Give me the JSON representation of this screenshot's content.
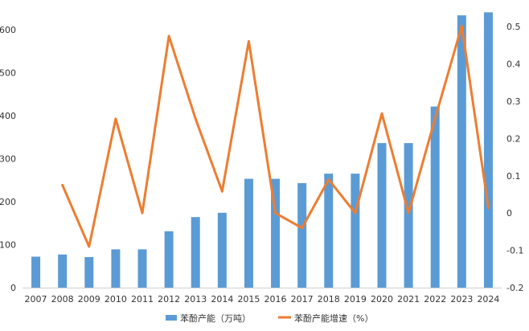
{
  "chart_data": {
    "type": "bar",
    "categories": [
      "2007",
      "2008",
      "2009",
      "2010",
      "2011",
      "2012",
      "2013",
      "2014",
      "2015",
      "2016",
      "2017",
      "2018",
      "2019",
      "2020",
      "2021",
      "2022",
      "2023",
      "2024"
    ],
    "y_left": {
      "ticks": [
        0,
        100,
        200,
        300,
        400,
        500,
        600
      ],
      "range": [
        0,
        650
      ]
    },
    "y_right": {
      "ticks": [
        "-0.2",
        "-0.1",
        "0",
        "0.1",
        "0.2",
        "0.3",
        "0.4",
        "0.5"
      ],
      "range": [
        -0.2,
        0.55
      ]
    },
    "grid": false,
    "legend_position": "bottom",
    "series": [
      {
        "name": "苯酚产能（万吨）",
        "type": "bar",
        "axis": "left",
        "color": "#5B9BD5",
        "values": [
          72,
          77,
          71,
          89,
          89,
          131,
          164,
          174,
          253,
          253,
          243,
          265,
          265,
          336,
          336,
          421,
          633,
          640
        ]
      },
      {
        "name": "苯酚产能增速（%）",
        "type": "line",
        "axis": "right",
        "color": "#ED7D31",
        "values": [
          null,
          0.075,
          -0.09,
          0.253,
          0.0,
          0.475,
          0.253,
          0.058,
          0.461,
          0.0,
          -0.04,
          0.09,
          0.0,
          0.267,
          0.0,
          0.254,
          0.502,
          0.014
        ]
      }
    ]
  }
}
